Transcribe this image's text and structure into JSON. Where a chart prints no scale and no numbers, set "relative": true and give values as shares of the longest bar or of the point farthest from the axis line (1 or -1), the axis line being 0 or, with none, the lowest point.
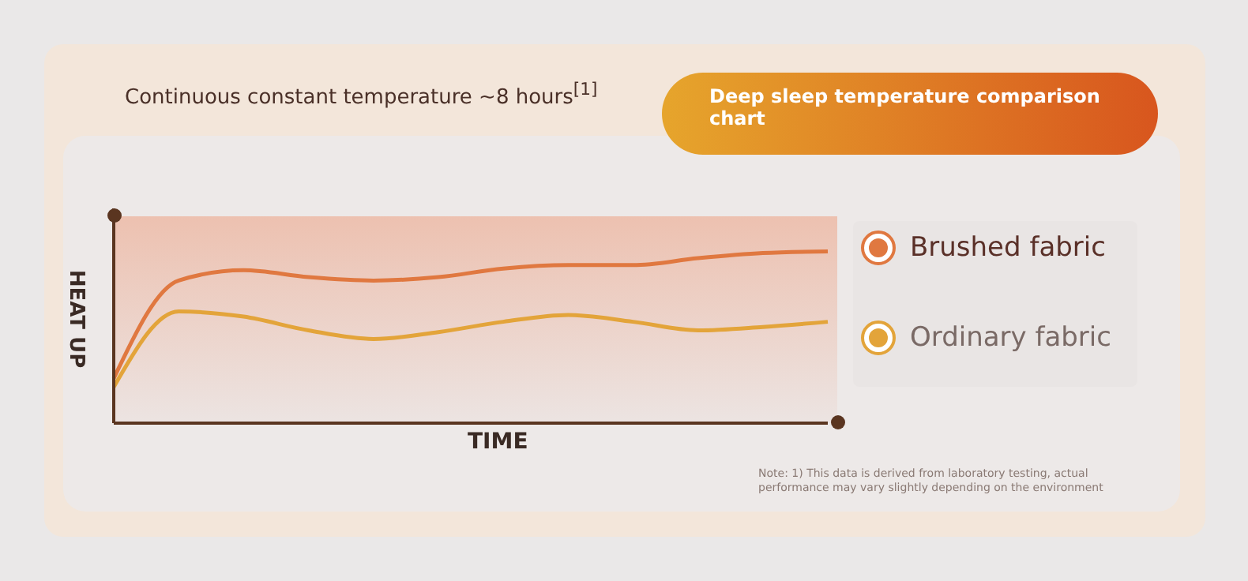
{
  "chart_data": {
    "type": "line",
    "title": "Deep sleep temperature comparison chart",
    "subtitle": "Continuous constant temperature ~8 hours$^{[1]}$",
    "xlabel": "TIME",
    "ylabel": "HEAT UP",
    "relative": true,
    "categories": [
      null,
      null,
      null,
      null,
      null,
      null,
      null,
      null,
      null,
      null,
      null,
      null
    ],
    "series": [
      {
        "name": "Brushed fabric",
        "color": "#e07840",
        "values": [
          0.26,
          0.83,
          0.89,
          0.85,
          0.83,
          0.85,
          0.9,
          0.92,
          0.92,
          0.96,
          0.99,
          1.0
        ]
      },
      {
        "name": "Ordinary fabric",
        "color": "#e3a43a",
        "values": [
          0.21,
          0.65,
          0.62,
          0.54,
          0.49,
          0.53,
          0.59,
          0.63,
          0.59,
          0.54,
          0.56,
          0.59
        ]
      }
    ],
    "legend": "right",
    "grid": false,
    "marker": "none",
    "line_style": "solid",
    "annotations": [
      "Note: 1) This data is derived from laboratory testing, actual performance may vary slightly depending on the environment"
    ]
  }
}
